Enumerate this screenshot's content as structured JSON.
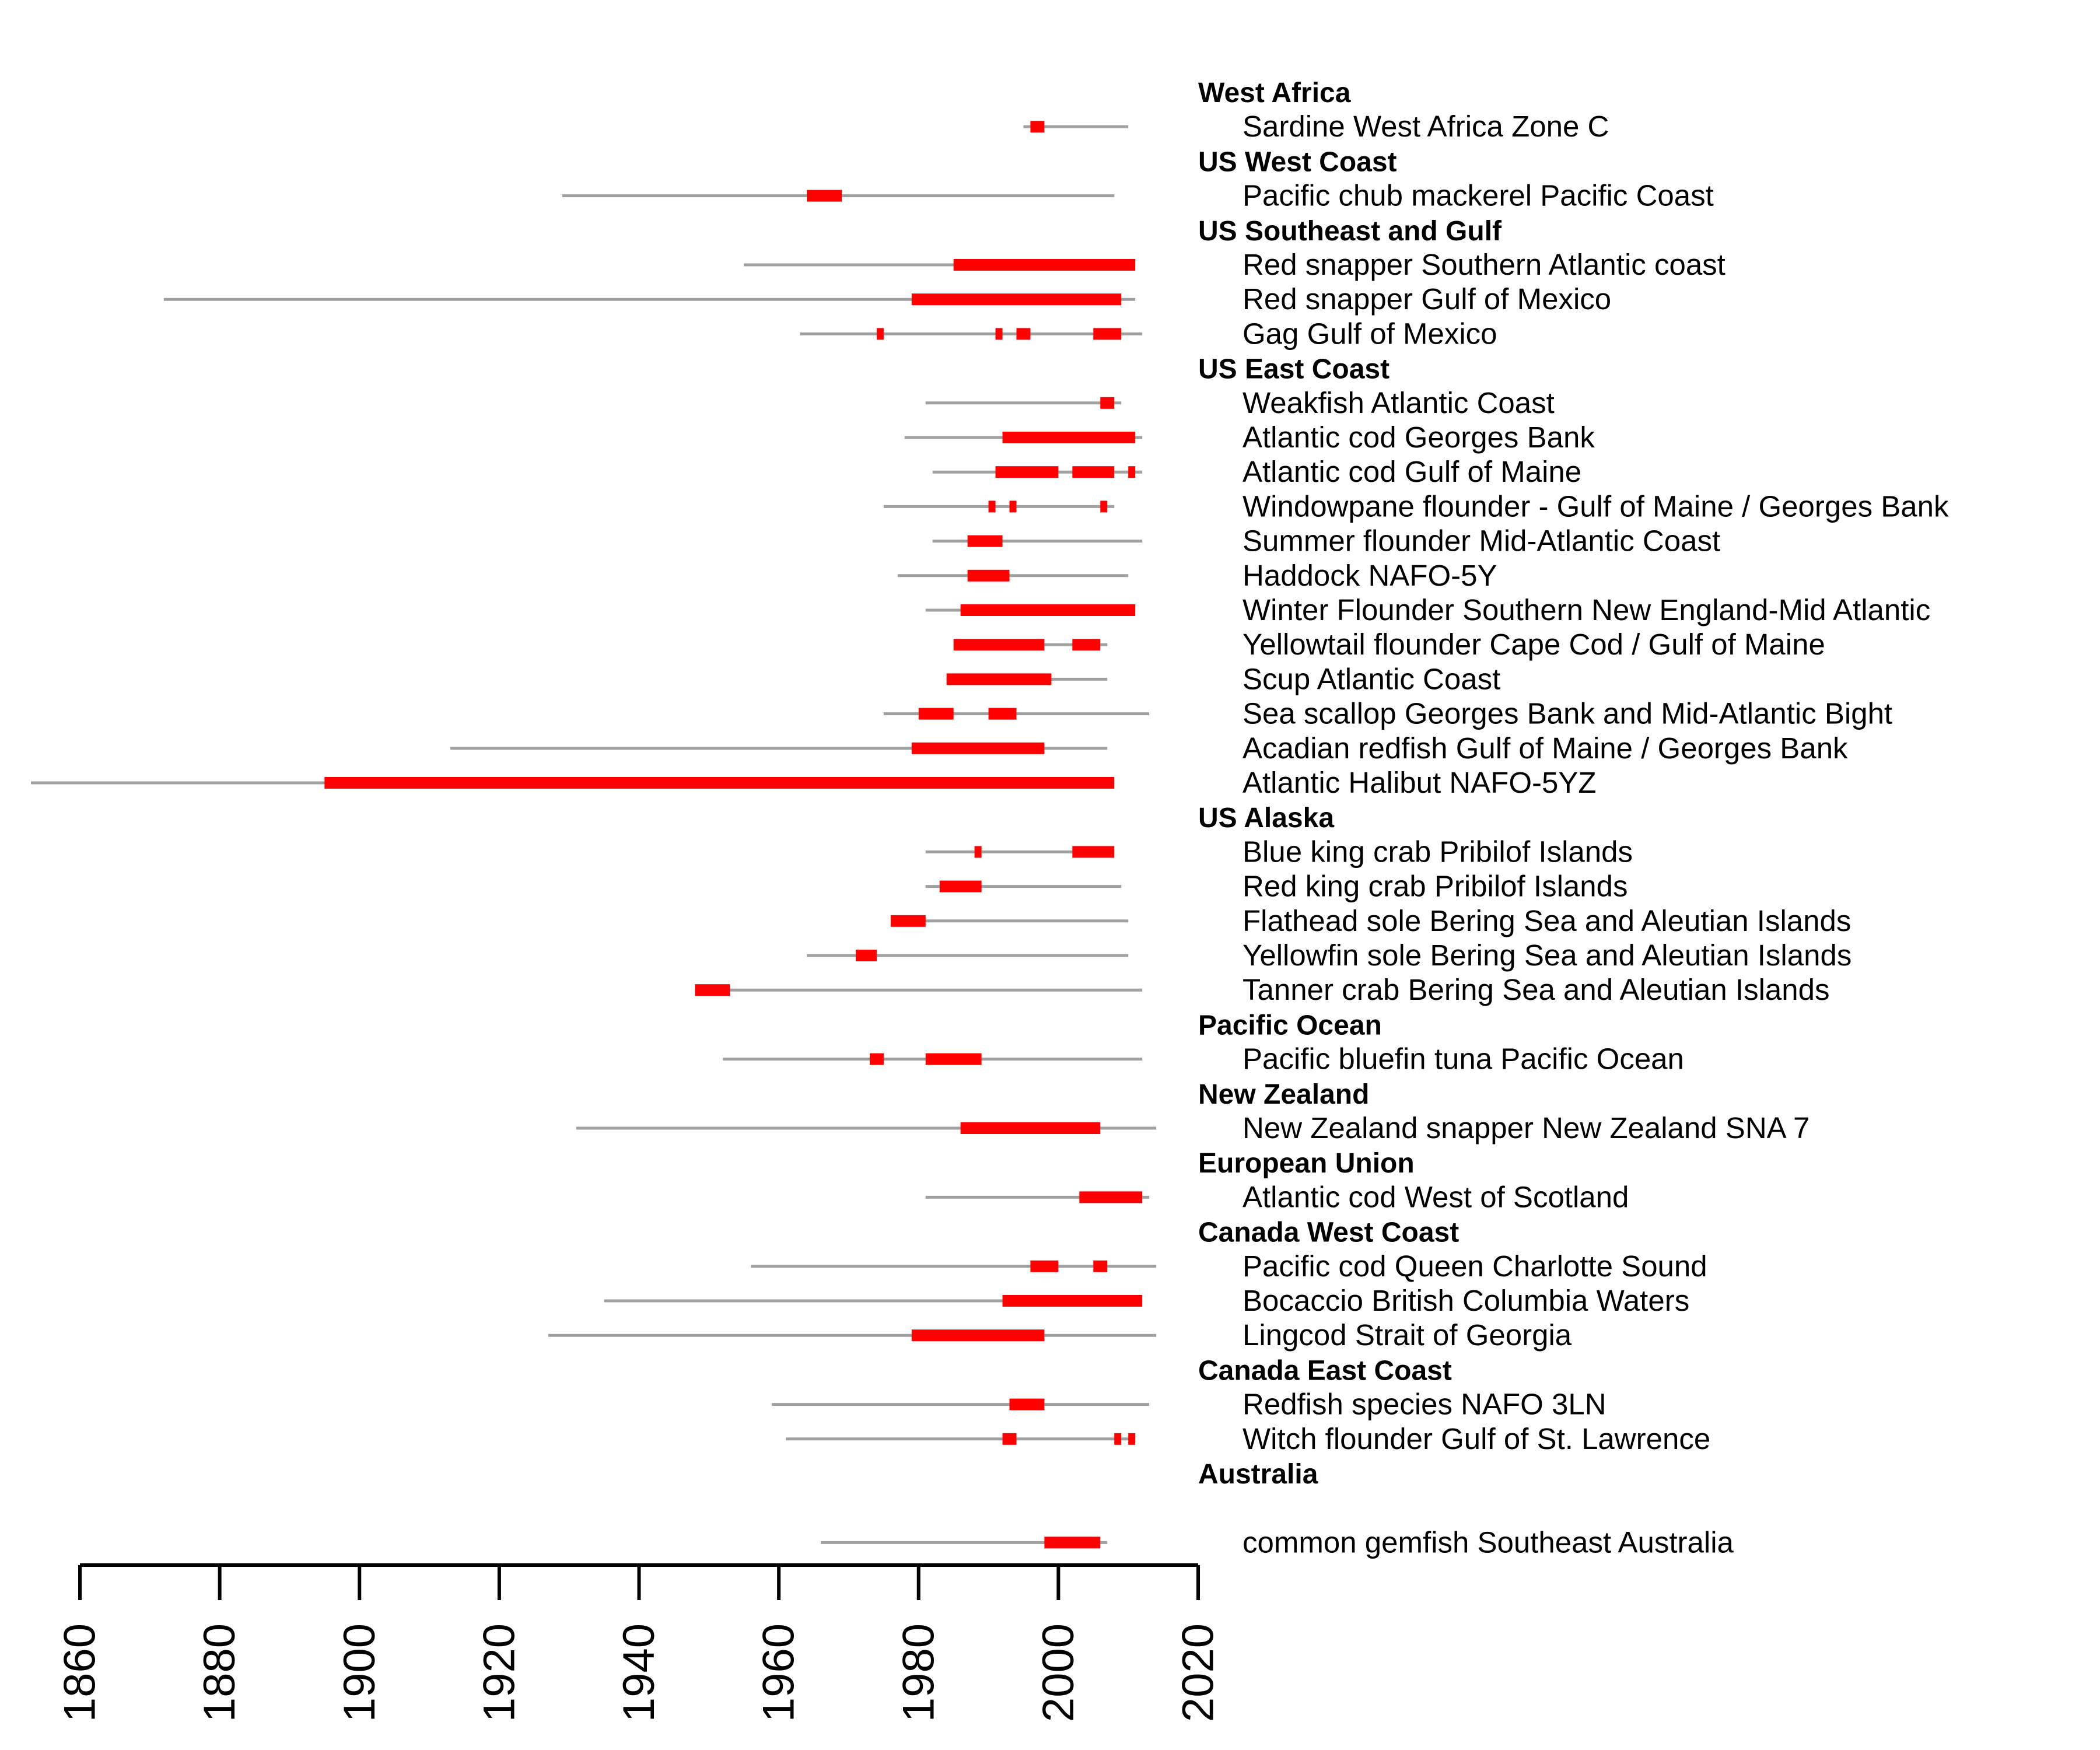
{
  "chart_data": {
    "type": "timeline",
    "colors": {
      "span": "#a0a0a0",
      "highlight": "#ff0000",
      "axis": "#000000"
    },
    "xlim": [
      1860,
      2020
    ],
    "ticks": [
      "1860",
      "1880",
      "1900",
      "1920",
      "1940",
      "1960",
      "1980",
      "2000",
      "2020"
    ],
    "rows": [
      {
        "kind": "group",
        "label": "West Africa"
      },
      {
        "kind": "stock",
        "label": "Sardine West Africa Zone C",
        "span": [
          1995,
          2010
        ],
        "periods": [
          [
            1996,
            1998
          ]
        ]
      },
      {
        "kind": "group",
        "label": "US West Coast"
      },
      {
        "kind": "stock",
        "label": "Pacific chub mackerel Pacific Coast",
        "span": [
          1929,
          2008
        ],
        "periods": [
          [
            1964,
            1969
          ]
        ]
      },
      {
        "kind": "group",
        "label": "US Southeast and Gulf"
      },
      {
        "kind": "stock",
        "label": "Red snapper Southern Atlantic coast",
        "span": [
          1955,
          2011
        ],
        "periods": [
          [
            1985,
            2011
          ]
        ]
      },
      {
        "kind": "stock",
        "label": "Red snapper Gulf of Mexico",
        "span": [
          1872,
          2011
        ],
        "periods": [
          [
            1979,
            2009
          ]
        ]
      },
      {
        "kind": "stock",
        "label": "Gag Gulf of Mexico",
        "span": [
          1963,
          2012
        ],
        "periods": [
          [
            1974,
            1975
          ],
          [
            1991,
            1992
          ],
          [
            1994,
            1996
          ],
          [
            2005,
            2009
          ]
        ]
      },
      {
        "kind": "group",
        "label": "US East Coast"
      },
      {
        "kind": "stock",
        "label": "Weakfish Atlantic Coast",
        "span": [
          1981,
          2009
        ],
        "periods": [
          [
            2006,
            2008
          ]
        ]
      },
      {
        "kind": "stock",
        "label": "Atlantic cod Georges Bank",
        "span": [
          1978,
          2012
        ],
        "periods": [
          [
            1992,
            2011
          ]
        ]
      },
      {
        "kind": "stock",
        "label": "Atlantic cod Gulf of Maine",
        "span": [
          1982,
          2012
        ],
        "periods": [
          [
            1991,
            2000
          ],
          [
            2002,
            2008
          ],
          [
            2010,
            2011
          ]
        ]
      },
      {
        "kind": "stock",
        "label": "Windowpane flounder - Gulf of Maine / Georges Bank",
        "span": [
          1975,
          2008
        ],
        "periods": [
          [
            1990,
            1991
          ],
          [
            1993,
            1994
          ],
          [
            2006,
            2007
          ]
        ]
      },
      {
        "kind": "stock",
        "label": "Summer flounder Mid-Atlantic Coast",
        "span": [
          1982,
          2012
        ],
        "periods": [
          [
            1987,
            1992
          ]
        ]
      },
      {
        "kind": "stock",
        "label": "Haddock NAFO-5Y",
        "span": [
          1977,
          2010
        ],
        "periods": [
          [
            1987,
            1993
          ]
        ]
      },
      {
        "kind": "stock",
        "label": "Winter Flounder Southern New England-Mid Atlantic",
        "span": [
          1981,
          2011
        ],
        "periods": [
          [
            1986,
            2011
          ]
        ]
      },
      {
        "kind": "stock",
        "label": "Yellowtail flounder Cape Cod / Gulf of Maine",
        "span": [
          1985,
          2007
        ],
        "periods": [
          [
            1985,
            1998
          ],
          [
            2002,
            2006
          ]
        ]
      },
      {
        "kind": "stock",
        "label": "Scup Atlantic Coast",
        "span": [
          1984,
          2007
        ],
        "periods": [
          [
            1984,
            1999
          ]
        ]
      },
      {
        "kind": "stock",
        "label": "Sea scallop Georges Bank and Mid-Atlantic Bight",
        "span": [
          1975,
          2013
        ],
        "periods": [
          [
            1980,
            1985
          ],
          [
            1990,
            1994
          ]
        ]
      },
      {
        "kind": "stock",
        "label": "Acadian redfish Gulf of Maine / Georges Bank",
        "span": [
          1913,
          2007
        ],
        "periods": [
          [
            1979,
            1998
          ]
        ]
      },
      {
        "kind": "stock",
        "label": "Atlantic Halibut NAFO-5YZ",
        "span": [
          1853,
          2008
        ],
        "periods": [
          [
            1895,
            2008
          ]
        ]
      },
      {
        "kind": "group",
        "label": "US Alaska"
      },
      {
        "kind": "stock",
        "label": "Blue king crab Pribilof Islands",
        "span": [
          1981,
          2008
        ],
        "periods": [
          [
            1988,
            1989
          ],
          [
            2002,
            2008
          ]
        ]
      },
      {
        "kind": "stock",
        "label": "Red king crab Pribilof Islands",
        "span": [
          1981,
          2009
        ],
        "periods": [
          [
            1983,
            1989
          ]
        ]
      },
      {
        "kind": "stock",
        "label": "Flathead sole Bering Sea and Aleutian Islands",
        "span": [
          1977,
          2010
        ],
        "periods": [
          [
            1976,
            1981
          ]
        ]
      },
      {
        "kind": "stock",
        "label": "Yellowfin sole Bering Sea and Aleutian Islands",
        "span": [
          1964,
          2010
        ],
        "periods": [
          [
            1971,
            1974
          ]
        ]
      },
      {
        "kind": "stock",
        "label": "Tanner crab Bering Sea and Aleutian Islands",
        "span": [
          1948,
          2012
        ],
        "periods": [
          [
            1948,
            1953
          ]
        ]
      },
      {
        "kind": "group",
        "label": "Pacific Ocean"
      },
      {
        "kind": "stock",
        "label": "Pacific bluefin tuna Pacific Ocean",
        "span": [
          1952,
          2012
        ],
        "periods": [
          [
            1973,
            1975
          ],
          [
            1981,
            1989
          ]
        ]
      },
      {
        "kind": "group",
        "label": "New Zealand"
      },
      {
        "kind": "stock",
        "label": "New Zealand snapper New Zealand SNA 7",
        "span": [
          1931,
          2014
        ],
        "periods": [
          [
            1986,
            2006
          ]
        ]
      },
      {
        "kind": "group",
        "label": "European Union"
      },
      {
        "kind": "stock",
        "label": "Atlantic cod West of Scotland",
        "span": [
          1981,
          2013
        ],
        "periods": [
          [
            2003,
            2012
          ]
        ]
      },
      {
        "kind": "group",
        "label": "Canada West Coast"
      },
      {
        "kind": "stock",
        "label": "Pacific cod Queen Charlotte Sound",
        "span": [
          1956,
          2014
        ],
        "periods": [
          [
            1996,
            2000
          ],
          [
            2005,
            2007
          ]
        ]
      },
      {
        "kind": "stock",
        "label": "Bocaccio British Columbia Waters",
        "span": [
          1935,
          2012
        ],
        "periods": [
          [
            1992,
            2012
          ]
        ]
      },
      {
        "kind": "stock",
        "label": "Lingcod Strait of Georgia",
        "span": [
          1927,
          2014
        ],
        "periods": [
          [
            1979,
            1998
          ]
        ]
      },
      {
        "kind": "group",
        "label": "Canada East Coast"
      },
      {
        "kind": "stock",
        "label": "Redfish species NAFO 3LN",
        "span": [
          1959,
          2013
        ],
        "periods": [
          [
            1993,
            1998
          ]
        ]
      },
      {
        "kind": "stock",
        "label": "Witch flounder Gulf of St. Lawrence",
        "span": [
          1961,
          2011
        ],
        "periods": [
          [
            1992,
            1994
          ],
          [
            2008,
            2009
          ],
          [
            2010,
            2011
          ]
        ]
      },
      {
        "kind": "group",
        "label": "Australia"
      },
      {
        "kind": "spacer",
        "label": ""
      },
      {
        "kind": "stock",
        "label": "common gemfish Southeast Australia",
        "span": [
          1966,
          2007
        ],
        "periods": [
          [
            1998,
            2006
          ]
        ]
      }
    ]
  }
}
